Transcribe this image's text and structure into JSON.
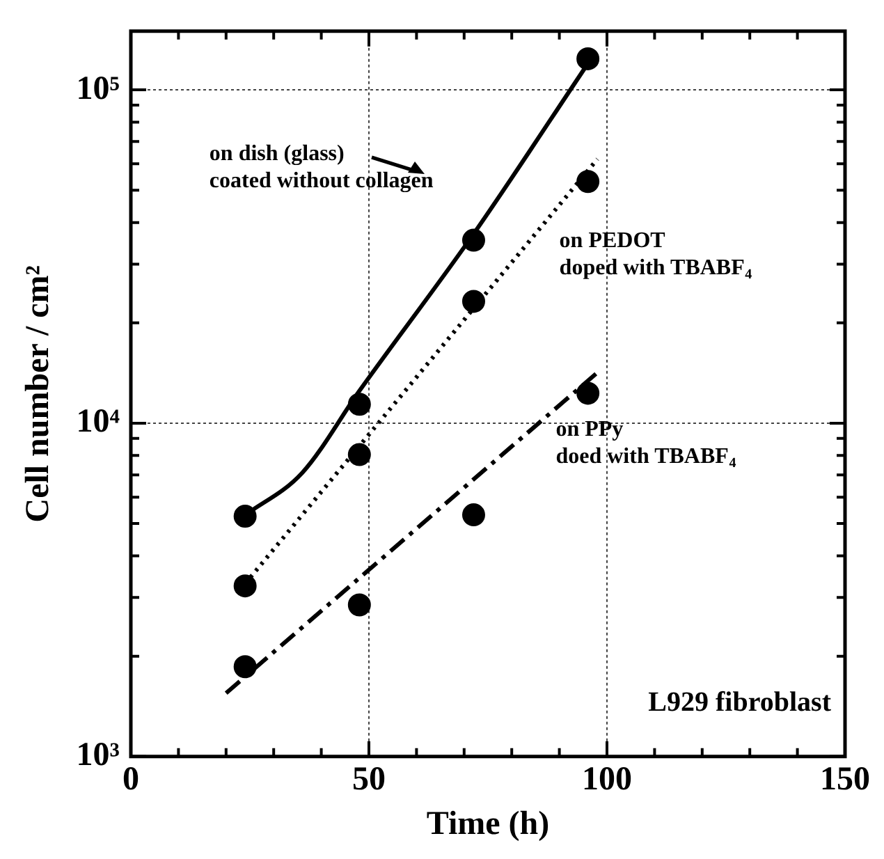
{
  "chart_data": {
    "type": "scatter",
    "xlabel": "Time (h)",
    "ylabel": "Cell number / cm²",
    "xlim": [
      0,
      150
    ],
    "xticks": [
      0,
      {
        "value": 10,
        "label": null
      },
      {
        "value": 20,
        "label": null
      },
      {
        "value": 30,
        "label": null
      },
      {
        "value": 40,
        "label": null
      },
      50,
      {
        "value": 60,
        "label": null
      },
      {
        "value": 70,
        "label": null
      },
      {
        "value": 80,
        "label": null
      },
      {
        "value": 90,
        "label": null
      },
      100,
      {
        "value": 110,
        "label": null
      },
      {
        "value": 120,
        "label": null
      },
      {
        "value": 130,
        "label": null
      },
      {
        "value": 140,
        "label": null
      },
      150
    ],
    "ylim": [
      1000,
      150000
    ],
    "log": "y",
    "yticks": [
      {
        "value": 1000,
        "label": "10³"
      },
      {
        "value": 2000,
        "label": null
      },
      {
        "value": 3000,
        "label": null
      },
      {
        "value": 4000,
        "label": null
      },
      {
        "value": 5000,
        "label": null
      },
      {
        "value": 6000,
        "label": null
      },
      {
        "value": 7000,
        "label": null
      },
      {
        "value": 8000,
        "label": null
      },
      {
        "value": 9000,
        "label": null
      },
      {
        "value": 10000,
        "label": "10⁴"
      },
      {
        "value": 20000,
        "label": null
      },
      {
        "value": 30000,
        "label": null
      },
      {
        "value": 40000,
        "label": null
      },
      {
        "value": 50000,
        "label": null
      },
      {
        "value": 60000,
        "label": null
      },
      {
        "value": 70000,
        "label": null
      },
      {
        "value": 80000,
        "label": null
      },
      {
        "value": 90000,
        "label": null
      },
      {
        "value": 100000,
        "label": "10⁵"
      }
    ],
    "grid": true,
    "legend": false,
    "series": [
      {
        "type": "scatter",
        "marker": "circle",
        "color": "#000000",
        "x": [
          24,
          48,
          72,
          96
        ],
        "values": [
          5260,
          11400,
          35400,
          124000
        ]
      },
      {
        "type": "scatter",
        "marker": "circle",
        "color": "#000000",
        "x": [
          24,
          48,
          72,
          96
        ],
        "values": [
          3250,
          8050,
          23200,
          53100
        ]
      },
      {
        "type": "scatter",
        "marker": "circle",
        "color": "#000000",
        "x": [
          24,
          48,
          72,
          96
        ],
        "values": [
          1860,
          2850,
          5310,
          12300
        ]
      },
      {
        "type": "line",
        "name": "on dish (glass)\ncoated without collagen",
        "marker": "none",
        "line_style": "solid",
        "color": "#000000",
        "x": [
          24,
          36,
          48,
          72,
          96
        ],
        "values": [
          5300,
          7100,
          12500,
          37000,
          120000
        ]
      },
      {
        "type": "line",
        "name": "on PEDOT\ndoped with TBABF$_{4}$",
        "marker": "none",
        "line_style": "dotted",
        "color": "#000000",
        "x": [
          24,
          98
        ],
        "values": [
          3300,
          62000
        ]
      },
      {
        "type": "line",
        "name": "on PPy\ndoed with TBABF$_{4}$",
        "marker": "none",
        "line_style": "dashdot",
        "color": "#000000",
        "x": [
          20,
          98
        ],
        "values": [
          1550,
          14200
        ]
      }
    ],
    "annotations": [
      "L929 fibroblast"
    ]
  }
}
